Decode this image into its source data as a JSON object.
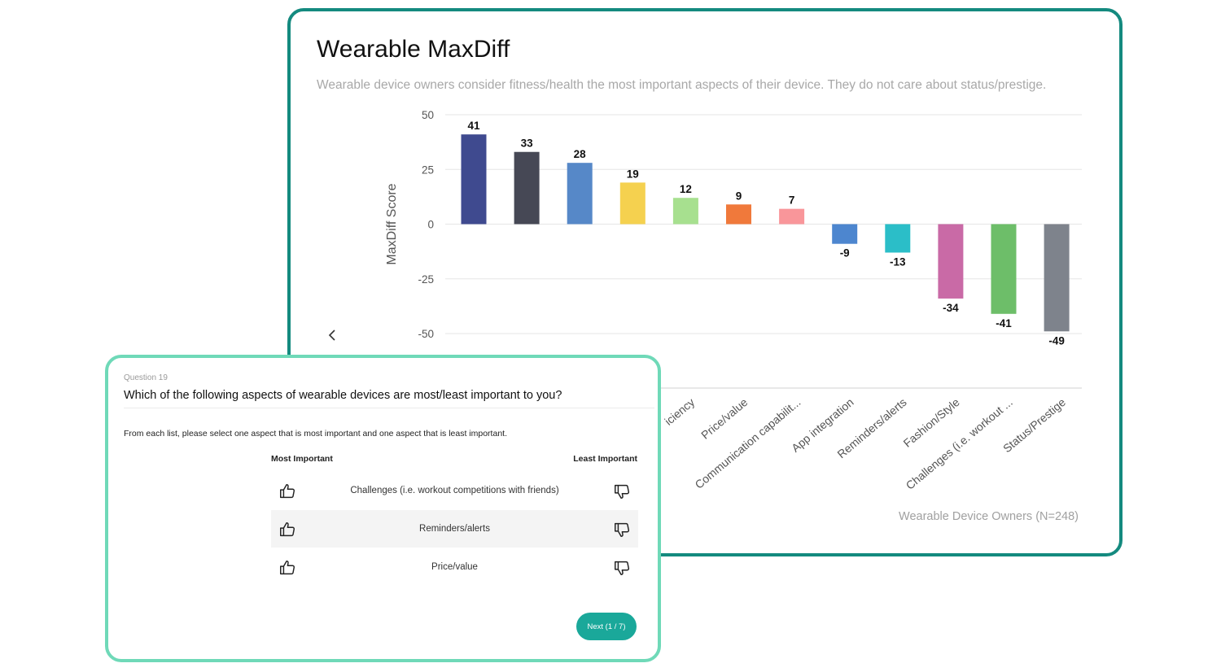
{
  "chart": {
    "title": "Wearable MaxDiff",
    "subtitle": "Wearable device owners consider fitness/health the most important aspects of their device. They do not care about status/prestige.",
    "footer": "Wearable Device Owners (N=248)",
    "prev_icon": "chevron-left-icon"
  },
  "chart_data": {
    "type": "bar",
    "ylabel": "MaxDiff Score",
    "ylim": [
      -50,
      50
    ],
    "yticks": [
      50,
      25,
      0,
      -25,
      -50
    ],
    "grid": true,
    "values": [
      41,
      33,
      28,
      19,
      12,
      9,
      7,
      -9,
      -13,
      -34,
      -41,
      -49
    ],
    "colors": [
      "#3f4a8f",
      "#464855",
      "#5688c8",
      "#f5d14f",
      "#a7e08f",
      "#f0793b",
      "#f9969a",
      "#4d86cf",
      "#2bbec8",
      "#c96aa6",
      "#6dbe69",
      "#7e838c"
    ],
    "visible_categories": [
      "iciency",
      "Price/value",
      "Communication capabilit...",
      "App integration",
      "Reminders/alerts",
      "Fashion/Style",
      "Challenges (i.e. workout ...",
      "Status/Prestige"
    ]
  },
  "question": {
    "number": "Question 19",
    "text": "Which of the following aspects of wearable devices are most/least important to you?",
    "instructions": "From each list, please select one aspect that is most important and one aspect that is least important.",
    "most_label": "Most Important",
    "least_label": "Least Important",
    "options": [
      {
        "label": "Challenges (i.e. workout competitions with friends)"
      },
      {
        "label": "Reminders/alerts"
      },
      {
        "label": "Price/value"
      }
    ],
    "next_label": "Next (1 / 7)",
    "up_icon": "thumbs-up-icon",
    "down_icon": "thumbs-down-icon"
  }
}
